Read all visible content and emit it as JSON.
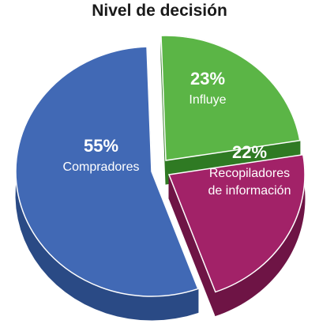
{
  "chart_data": {
    "type": "pie",
    "title": "Nivel de decisión",
    "slices": [
      {
        "label": "Compradores",
        "value": 55,
        "value_label": "55%",
        "label_lines": [
          "Compradores"
        ],
        "color": "#4169b5",
        "side_color": "#2a4a85"
      },
      {
        "label": "Influye",
        "value": 23,
        "value_label": "23%",
        "label_lines": [
          "Influye"
        ],
        "color": "#5bb546",
        "side_color": "#2f7a23"
      },
      {
        "label": "Recopiladores de información",
        "value": 22,
        "value_label": "22%",
        "label_lines": [
          "Recopiladores",
          "de información"
        ],
        "color": "#a22268",
        "side_color": "#6e1445"
      }
    ]
  }
}
